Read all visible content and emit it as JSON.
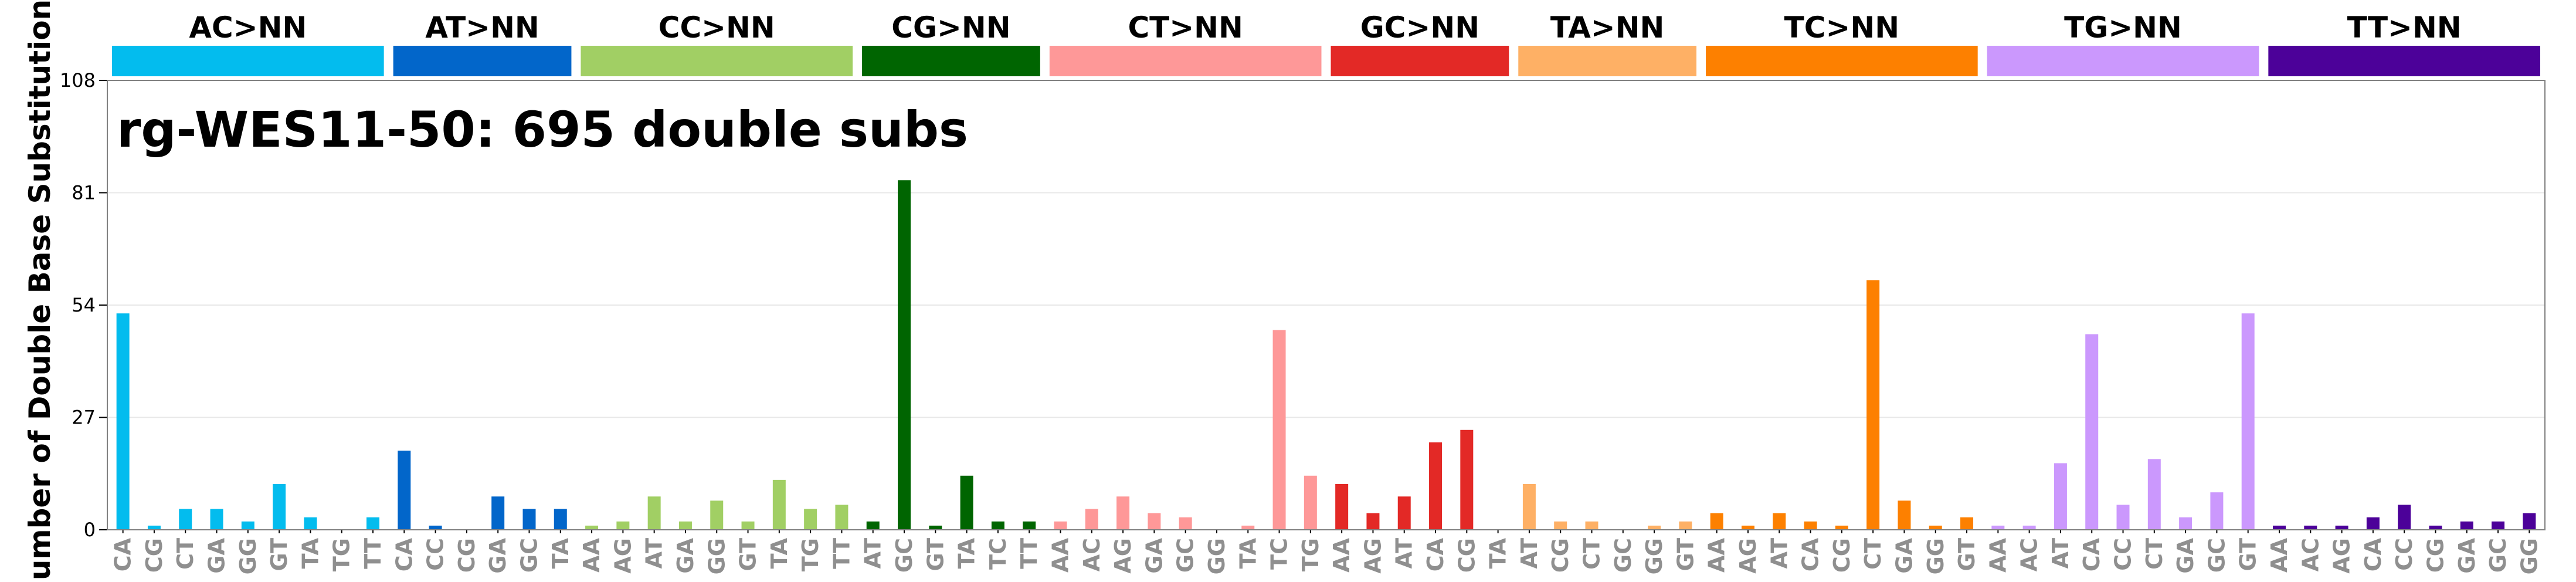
{
  "chart_data": {
    "type": "bar",
    "title": "rg-WES11-50: 695 double subs",
    "ylabel": "Number of Double Base Substitutions",
    "xlabel": "",
    "ylim": [
      0,
      108
    ],
    "yticks": [
      0,
      27,
      54,
      81,
      108
    ],
    "grid": true,
    "legend": "none",
    "groups": [
      {
        "name": "AC>NN",
        "color": "#03BCEE",
        "categories": [
          "CA",
          "CG",
          "CT",
          "GA",
          "GG",
          "GT",
          "TA",
          "TG",
          "TT"
        ],
        "values": [
          52,
          1,
          5,
          5,
          2,
          11,
          3,
          0,
          3
        ]
      },
      {
        "name": "AT>NN",
        "color": "#0266CA",
        "categories": [
          "CA",
          "CC",
          "CG",
          "GA",
          "GC",
          "TA"
        ],
        "values": [
          19,
          1,
          0,
          8,
          5,
          5
        ]
      },
      {
        "name": "CC>NN",
        "color": "#A1CF64",
        "categories": [
          "AA",
          "AG",
          "AT",
          "GA",
          "GG",
          "GT",
          "TA",
          "TG",
          "TT"
        ],
        "values": [
          1,
          2,
          8,
          2,
          7,
          2,
          12,
          5,
          6
        ]
      },
      {
        "name": "CG>NN",
        "color": "#006501",
        "categories": [
          "AT",
          "GC",
          "GT",
          "TA",
          "TC",
          "TT"
        ],
        "values": [
          2,
          84,
          1,
          13,
          2,
          2
        ]
      },
      {
        "name": "CT>NN",
        "color": "#FE9898",
        "categories": [
          "AA",
          "AC",
          "AG",
          "GA",
          "GC",
          "GG",
          "TA",
          "TC",
          "TG"
        ],
        "values": [
          2,
          5,
          8,
          4,
          3,
          0,
          1,
          48,
          13
        ]
      },
      {
        "name": "GC>NN",
        "color": "#E32926",
        "categories": [
          "AA",
          "AG",
          "AT",
          "CA",
          "CG",
          "TA"
        ],
        "values": [
          11,
          4,
          8,
          21,
          24,
          0
        ]
      },
      {
        "name": "TA>NN",
        "color": "#FEB065",
        "categories": [
          "AT",
          "CG",
          "CT",
          "GC",
          "GG",
          "GT"
        ],
        "values": [
          11,
          2,
          2,
          0,
          1,
          2
        ]
      },
      {
        "name": "TC>NN",
        "color": "#FD8000",
        "categories": [
          "AA",
          "AG",
          "AT",
          "CA",
          "CG",
          "CT",
          "GA",
          "GG",
          "GT"
        ],
        "values": [
          4,
          1,
          4,
          2,
          1,
          60,
          7,
          1,
          3
        ]
      },
      {
        "name": "TG>NN",
        "color": "#CB98FD",
        "categories": [
          "AA",
          "AC",
          "AT",
          "CA",
          "CC",
          "CT",
          "GA",
          "GC",
          "GT"
        ],
        "values": [
          1,
          1,
          16,
          47,
          6,
          17,
          3,
          9,
          52
        ]
      },
      {
        "name": "TT>NN",
        "color": "#4C0199",
        "categories": [
          "AA",
          "AC",
          "AG",
          "CA",
          "CC",
          "CG",
          "GA",
          "GC",
          "GG"
        ],
        "values": [
          1,
          1,
          1,
          3,
          6,
          1,
          2,
          2,
          4
        ]
      }
    ]
  }
}
